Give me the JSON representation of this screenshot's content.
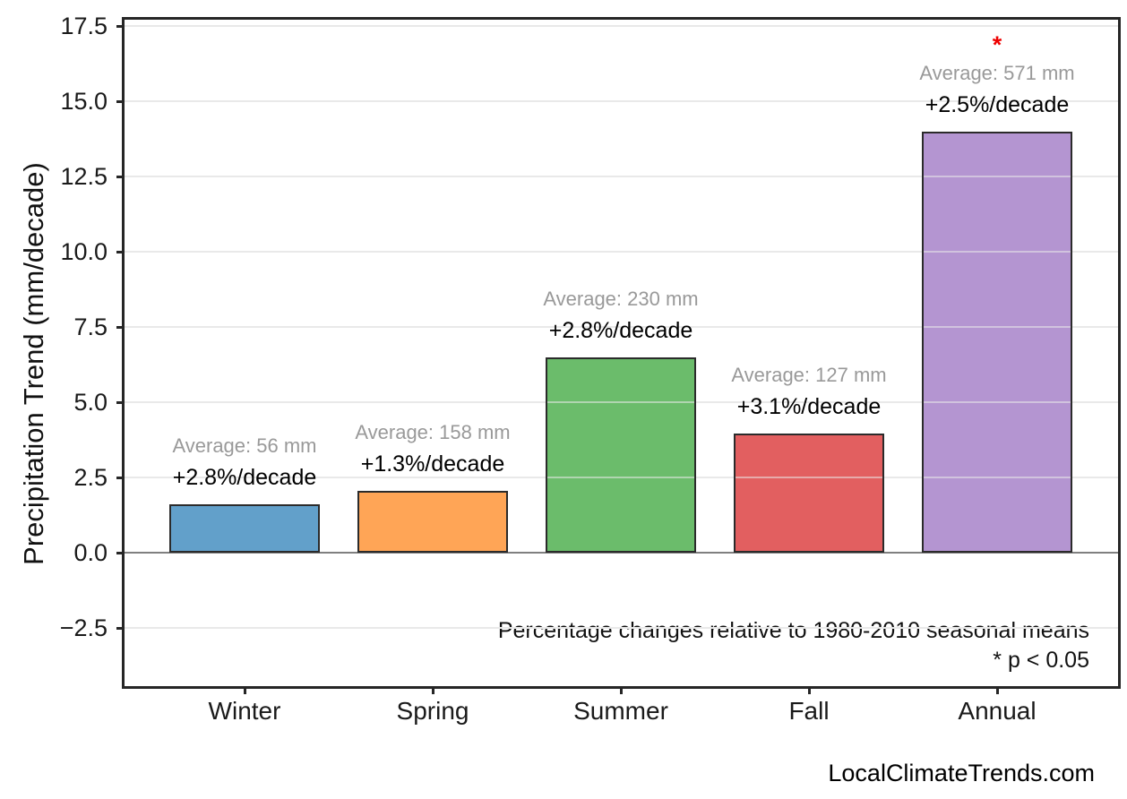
{
  "figure": {
    "ylabel": "Precipitation Trend (mm/decade)",
    "note_line1": "Percentage changes relative to 1980-2010 seasonal means",
    "note_line2": "* p < 0.05",
    "footer": "LocalClimateTrends.com"
  },
  "chart_data": {
    "type": "bar",
    "title": "",
    "xlabel": "",
    "ylabel": "Precipitation Trend (mm/decade)",
    "categories": [
      "Winter",
      "Spring",
      "Summer",
      "Fall",
      "Annual"
    ],
    "values": [
      1.6,
      2.05,
      6.5,
      3.95,
      14.0
    ],
    "bar_labels": [
      {
        "average": "Average: 56 mm",
        "trend": "+2.8%/decade",
        "significant": false
      },
      {
        "average": "Average: 158 mm",
        "trend": "+1.3%/decade",
        "significant": false
      },
      {
        "average": "Average: 230 mm",
        "trend": "+2.8%/decade",
        "significant": false
      },
      {
        "average": "Average: 127 mm",
        "trend": "+3.1%/decade",
        "significant": false
      },
      {
        "average": "Average: 571 mm",
        "trend": "+2.5%/decade",
        "significant": true
      }
    ],
    "significance_marker": "*",
    "ylim": [
      -4.43,
      17.71
    ],
    "ytick_values": [
      17.5,
      15.0,
      12.5,
      10.0,
      7.5,
      5.0,
      2.5,
      0.0,
      -2.5
    ],
    "ytick_labels": [
      "17.5",
      "15.0",
      "12.5",
      "10.0",
      "7.5",
      "5.0",
      "2.5",
      "0.0",
      "−2.5"
    ],
    "grid": "horizontal",
    "legend": "none",
    "annotations": [
      "Percentage changes relative to 1980-2010 seasonal means",
      "* p < 0.05"
    ],
    "watermark": "LocalClimateTrends.com",
    "colors": {
      "bar_fills": [
        "#62a0ca",
        "#ffa556",
        "#6bbc6b",
        "#e25f60",
        "#b495d1"
      ],
      "bar_edge": "#2b2b2b",
      "grid": "#e9e9e9",
      "zero_line": "#808080",
      "axis_border": "#262626",
      "text": "#111111",
      "muted_text": "#999999",
      "significance": "#ee0000"
    }
  }
}
